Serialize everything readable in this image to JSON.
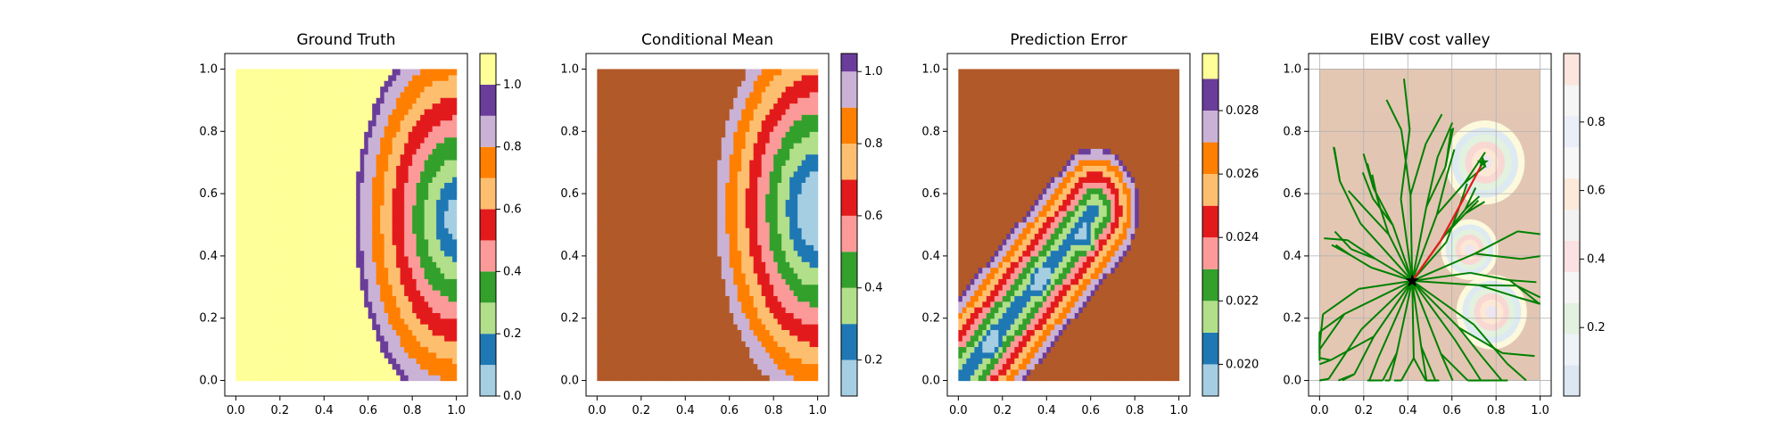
{
  "chart_data": [
    {
      "type": "heatmap",
      "title": "Ground Truth",
      "xlim": [
        0,
        1
      ],
      "ylim": [
        0,
        1
      ],
      "xticks": [
        "0.0",
        "0.2",
        "0.4",
        "0.6",
        "0.8",
        "1.0"
      ],
      "yticks": [
        "0.0",
        "0.2",
        "0.4",
        "0.6",
        "0.8",
        "1.0"
      ],
      "colorbar": {
        "range": [
          0,
          1.1
        ],
        "levels": [
          0,
          0.1,
          0.2,
          0.3,
          0.4,
          0.5,
          0.6,
          0.7,
          0.8,
          0.9,
          1.0,
          1.1
        ],
        "ticks": [
          "0.0",
          "0.2",
          "0.4",
          "0.6",
          "0.8",
          "1.0"
        ]
      },
      "field": {
        "kind": "semicircle_rings",
        "center": [
          1.0,
          0.52
        ],
        "ring_width": 0.07,
        "background_value": 1.0,
        "low_region_value": 1.05,
        "low_region_top": 0.26
      }
    },
    {
      "type": "heatmap",
      "title": "Conditional Mean",
      "xlim": [
        0,
        1
      ],
      "ylim": [
        0,
        1
      ],
      "xticks": [
        "0.0",
        "0.2",
        "0.4",
        "0.6",
        "0.8",
        "1.0"
      ],
      "yticks": [
        "0.0",
        "0.2",
        "0.4",
        "0.6",
        "0.8",
        "1.0"
      ],
      "colorbar": {
        "range": [
          0.1,
          1.05
        ],
        "levels": [
          0.1,
          0.2,
          0.3,
          0.4,
          0.5,
          0.6,
          0.7,
          0.8,
          0.9,
          1.0
        ],
        "ticks": [
          "0.2",
          "0.4",
          "0.6",
          "0.8",
          "1.0"
        ]
      },
      "field": {
        "kind": "semicircle_rings",
        "center": [
          1.0,
          0.55
        ],
        "ring_width": 0.06,
        "background_value": 1.05
      }
    },
    {
      "type": "heatmap",
      "title": "Prediction Error",
      "xlim": [
        0,
        1
      ],
      "ylim": [
        0,
        1
      ],
      "xticks": [
        "0.0",
        "0.2",
        "0.4",
        "0.6",
        "0.8",
        "1.0"
      ],
      "yticks": [
        "0.0",
        "0.2",
        "0.4",
        "0.6",
        "0.8",
        "1.0"
      ],
      "colorbar": {
        "range": [
          0.019,
          0.0298
        ],
        "levels": [
          0.019,
          0.02,
          0.021,
          0.022,
          0.023,
          0.024,
          0.025,
          0.026,
          0.027,
          0.028,
          0.029
        ],
        "ticks": [
          "0.020",
          "0.022",
          "0.024",
          "0.026",
          "0.028"
        ]
      },
      "field": {
        "kind": "diagonal_band",
        "centers": [
          [
            0.38,
            0.32
          ],
          [
            0.58,
            0.45
          ],
          [
            0.15,
            0.12
          ]
        ],
        "background_value": 0.0298
      }
    },
    {
      "type": "heatmap",
      "title": "EIBV cost valley",
      "xlim": [
        0,
        1
      ],
      "ylim": [
        0,
        1
      ],
      "xticks": [
        "0.0",
        "0.2",
        "0.4",
        "0.6",
        "0.8",
        "1.0"
      ],
      "yticks": [
        "0.0",
        "0.2",
        "0.4",
        "0.6",
        "0.8",
        "1.0"
      ],
      "grid": true,
      "colorbar": {
        "range": [
          0,
          1
        ],
        "ticks": [
          "0.2",
          "0.4",
          "0.6",
          "0.8"
        ]
      },
      "start_point": [
        0.42,
        0.32
      ],
      "target_point": [
        0.74,
        0.7
      ],
      "tree_color": "#008000",
      "path_color": "#e31a1c"
    }
  ],
  "colors": {
    "paired": [
      "#a6cee3",
      "#1f78b4",
      "#b2df8a",
      "#33a02c",
      "#fb9a99",
      "#e31a1c",
      "#fdbf6f",
      "#ff7f00",
      "#cab2d6",
      "#6a3d9a",
      "#ffff99",
      "#b15928"
    ],
    "pastel": [
      "#fbb4ae",
      "#b3cde3",
      "#ccebc5",
      "#decbe4",
      "#fed9a6",
      "#ffffcc",
      "#e5d8bd",
      "#fddaec",
      "#f2f2f2"
    ]
  }
}
